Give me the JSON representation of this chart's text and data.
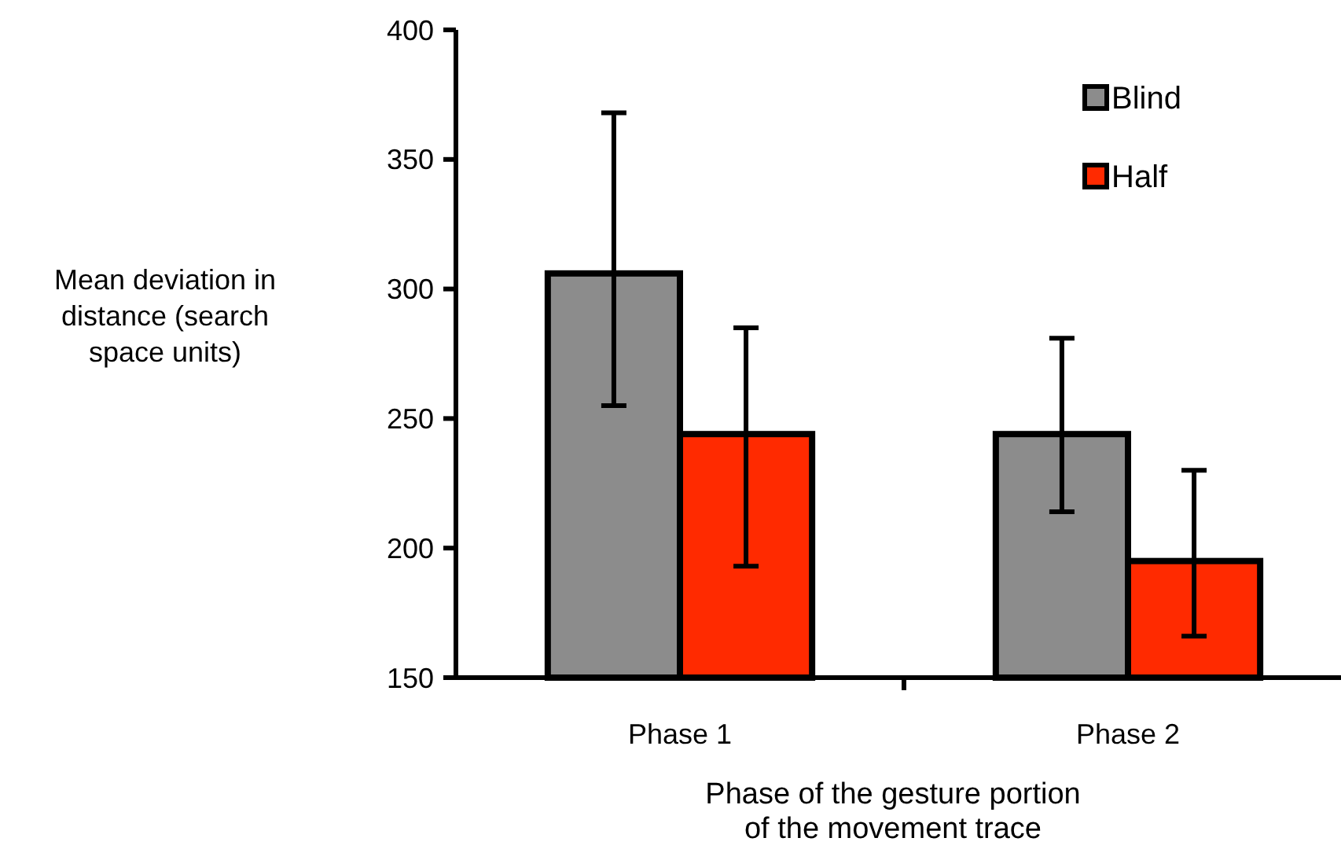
{
  "chart_data": {
    "type": "bar",
    "categories": [
      "Phase 1",
      "Phase 2"
    ],
    "series": [
      {
        "name": "Blind",
        "color": "#8c8c8c",
        "values": [
          306,
          244
        ],
        "errors": [
          [
            255,
            368
          ],
          [
            214,
            281
          ]
        ]
      },
      {
        "name": "Half",
        "color": "#ff2a00",
        "values": [
          244,
          195
        ],
        "errors": [
          [
            193,
            285
          ],
          [
            166,
            230
          ]
        ]
      }
    ],
    "ylabel": "Mean deviation in\ndistance (search\nspace units)",
    "xlabel": "Phase of the gesture portion\nof the movement trace",
    "ylim": [
      150,
      400
    ],
    "yticks": [
      150,
      200,
      250,
      300,
      350,
      400
    ],
    "grid": false,
    "legend": "top right"
  }
}
